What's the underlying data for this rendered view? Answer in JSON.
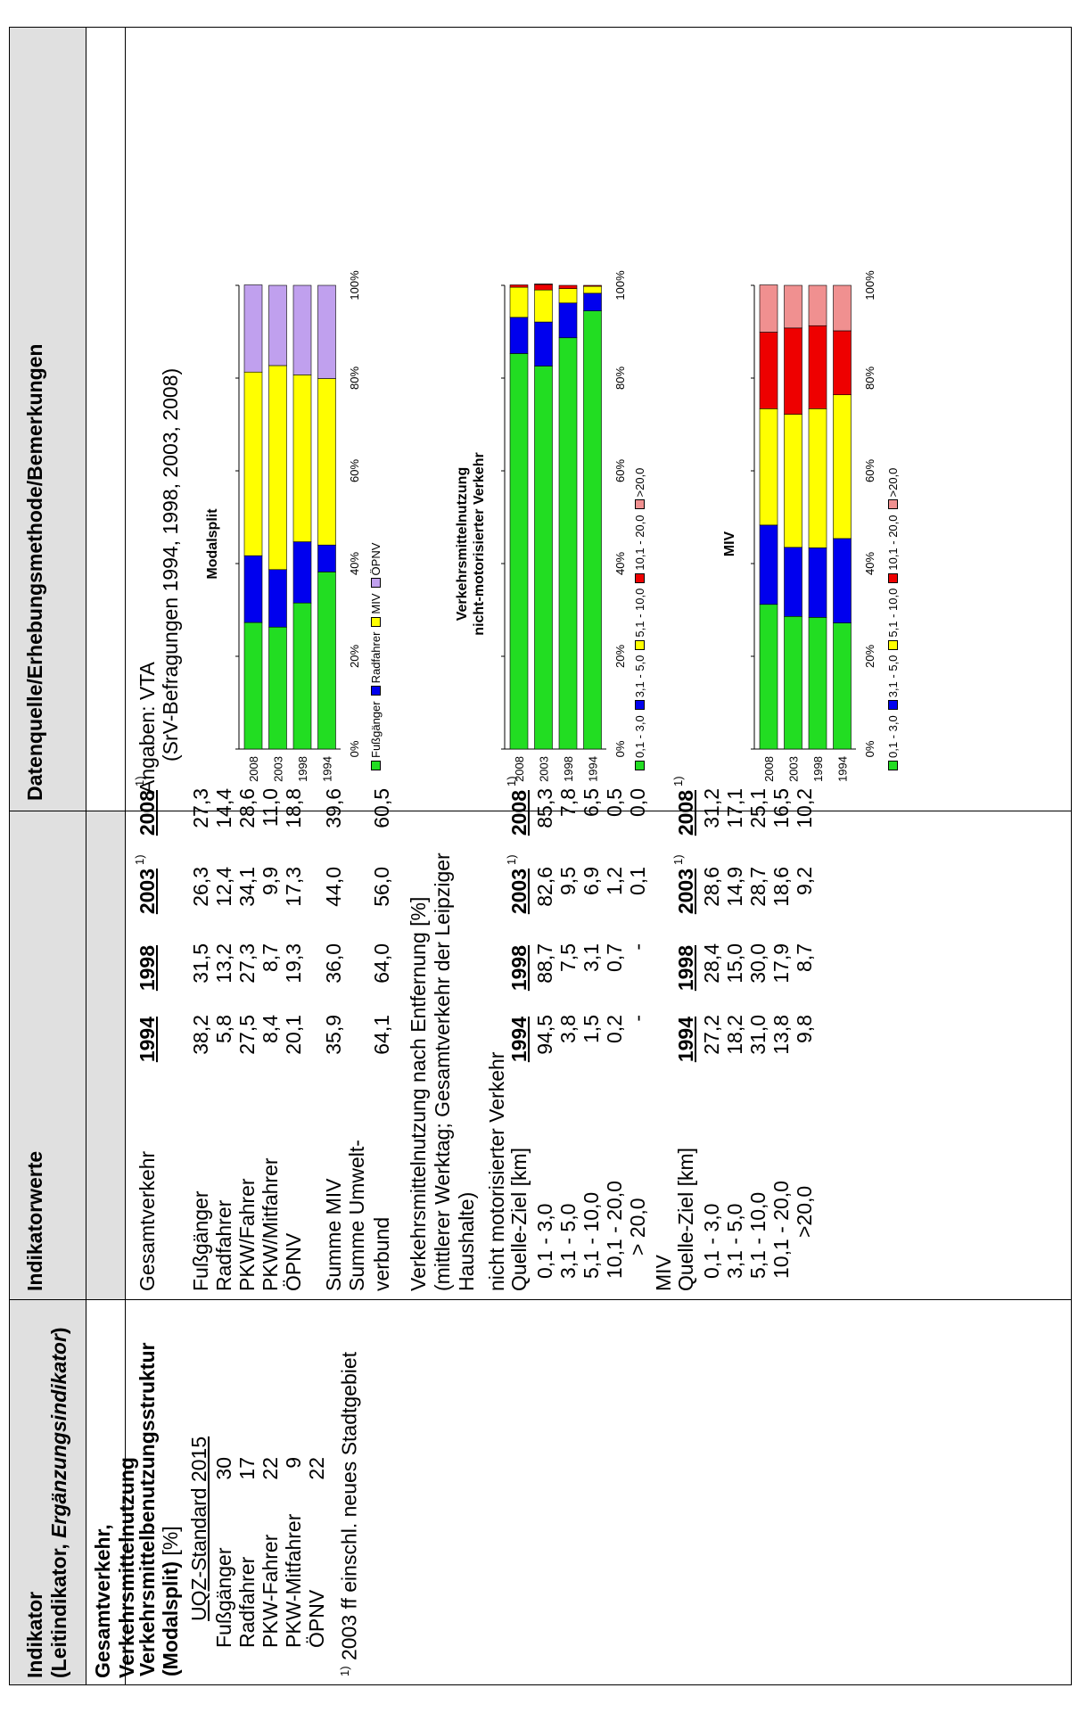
{
  "headers": {
    "col1_line1": "Indikator",
    "col1_line2_bold": "(Leitindikator, ",
    "col1_line2_italic": "Ergänzungsindikator",
    "col1_line2_end": ")",
    "col2": "Indikatorwerte",
    "col3": "Datenquelle/Erhebungsmethode/Bemerkungen"
  },
  "section": "Gesamtverkehr, Verkehrsmittelnutzung",
  "indicator": {
    "title_line1": "Verkehrsmittelbenutzungsstruktur",
    "title_line2_bold": "(Modalsplit)",
    "title_line2_rest": " [%]",
    "standard_title": "UQZ-Standard 2015",
    "standard_rows": [
      {
        "label": "Fußgänger",
        "value": "30"
      },
      {
        "label": "Radfahrer",
        "value": "17"
      },
      {
        "label": "PKW-Fahrer",
        "value": "22"
      },
      {
        "label": "PKW-Mitfahrer",
        "value": "9"
      },
      {
        "label": "ÖPNV",
        "value": "22"
      }
    ],
    "footnote_marker": "1)",
    "footnote_text": " 2003 ff einschl. neues Stadtgebiet"
  },
  "values": {
    "years": [
      "1994",
      "1998",
      "2003",
      "2008"
    ],
    "footnote_marker": "1)",
    "gesamt_label": "Gesamtverkehr",
    "gesamt_rows": [
      {
        "label": "Fußgänger",
        "v": [
          "38,2",
          "31,5",
          "26,3",
          "27,3"
        ]
      },
      {
        "label": "Radfahrer",
        "v": [
          "5,8",
          "13,2",
          "12,4",
          "14,4"
        ]
      },
      {
        "label": "PKW/Fahrer",
        "v": [
          "27,5",
          "27,3",
          "34,1",
          "28,6"
        ]
      },
      {
        "label": "PKW/Mitfahrer",
        "v": [
          "8,4",
          "8,7",
          "9,9",
          "11,0"
        ]
      },
      {
        "label": "ÖPNV",
        "v": [
          "20,1",
          "19,3",
          "17,3",
          "18,8"
        ]
      }
    ],
    "summe_miv": {
      "label": "Summe MIV",
      "v": [
        "35,9",
        "36,0",
        "44,0",
        "39,6"
      ]
    },
    "summe_umwelt_line1": "Summe Umwelt-",
    "summe_umwelt": {
      "label": "verbund",
      "v": [
        "64,1",
        "64,0",
        "56,0",
        "60,5"
      ]
    },
    "entfernung_lines": [
      "Verkehrsmittelnutzung nach Entfernung [%]",
      "(mittlerer Werktag; Gesamtverkehr der Leipziger",
      "Haushalte)"
    ],
    "nmv_label": "nicht motorisierter Verkehr",
    "qz_label": "Quelle-Ziel [km]",
    "nmv_rows": [
      {
        "label": "0,1 -  3,0",
        "v": [
          "94,5",
          "88,7",
          "82,6",
          "85,3"
        ]
      },
      {
        "label": "3,1 -  5,0",
        "v": [
          "3,8",
          "7,5",
          "9,5",
          "7,8"
        ]
      },
      {
        "label": "5,1 - 10,0",
        "v": [
          "1,5",
          "3,1",
          "6,9",
          "6,5"
        ]
      },
      {
        "label": "10,1 - 20,0",
        "v": [
          "0,2",
          "0,7",
          "1,2",
          "0,5"
        ]
      },
      {
        "label": "> 20,0",
        "v": [
          "-",
          "-",
          "0,1",
          "0,0"
        ]
      }
    ],
    "miv_label": "MIV",
    "miv_rows": [
      {
        "label": "0,1 -  3,0",
        "v": [
          "27,2",
          "28,4",
          "28,6",
          "31,2"
        ]
      },
      {
        "label": "3,1 -  5,0",
        "v": [
          "18,2",
          "15,0",
          "14,9",
          "17,1"
        ]
      },
      {
        "label": "5,1 - 10,0",
        "v": [
          "31,0",
          "30,0",
          "28,7",
          "25,1"
        ]
      },
      {
        "label": "10,1 - 20,0",
        "v": [
          "13,8",
          "17,9",
          "18,6",
          "16,5"
        ]
      },
      {
        "label": ">20,0",
        "v": [
          "9,8",
          "8,7",
          "9,2",
          "10,2"
        ]
      }
    ]
  },
  "source": {
    "line1": "Angaben: VTA",
    "line2": "(SrV-Befragungen 1994, 1998, 2003, 2008)"
  },
  "chart_data": [
    {
      "type": "bar",
      "stacked": true,
      "orientation": "horizontal",
      "title": "Modalsplit",
      "categories": [
        "2008",
        "2003",
        "1998",
        "1994"
      ],
      "xticks": [
        "0%",
        "20%",
        "40%",
        "60%",
        "80%",
        "100%"
      ],
      "series": [
        {
          "name": "Fußgänger",
          "color": "#22dd22",
          "values": [
            27.3,
            26.3,
            31.5,
            38.2
          ]
        },
        {
          "name": "Radfahrer",
          "color": "#0000ee",
          "values": [
            14.4,
            12.4,
            13.2,
            5.8
          ]
        },
        {
          "name": "MIV",
          "color": "#ffff00",
          "values": [
            39.6,
            44.0,
            36.0,
            35.9
          ]
        },
        {
          "name": "ÖPNV",
          "color": "#c0a0ee",
          "values": [
            18.8,
            17.3,
            19.3,
            20.1
          ]
        }
      ]
    },
    {
      "type": "bar",
      "stacked": true,
      "orientation": "horizontal",
      "title_lines": [
        "Verkehrsmittelnutzung",
        "nicht-motorisierter Verkehr"
      ],
      "categories": [
        "2008",
        "2003",
        "1998",
        "1994"
      ],
      "xticks": [
        "0%",
        "20%",
        "40%",
        "60%",
        "80%",
        "100%"
      ],
      "series": [
        {
          "name": "0,1 - 3,0",
          "color": "#22dd22",
          "values": [
            85.3,
            82.6,
            88.7,
            94.5
          ]
        },
        {
          "name": "3,1 - 5,0",
          "color": "#0000ee",
          "values": [
            7.8,
            9.5,
            7.5,
            3.8
          ]
        },
        {
          "name": "5,1 - 10,0",
          "color": "#ffff00",
          "values": [
            6.5,
            6.9,
            3.1,
            1.5
          ]
        },
        {
          "name": "10,1 - 20,0",
          "color": "#ee0000",
          "values": [
            0.5,
            1.2,
            0.7,
            0.2
          ]
        },
        {
          "name": ">20,0",
          "color": "#f09090",
          "values": [
            0.0,
            0.1,
            0,
            0
          ]
        }
      ]
    },
    {
      "type": "bar",
      "stacked": true,
      "orientation": "horizontal",
      "title": "MIV",
      "categories": [
        "2008",
        "2003",
        "1998",
        "1994"
      ],
      "xticks": [
        "0%",
        "20%",
        "40%",
        "60%",
        "80%",
        "100%"
      ],
      "series": [
        {
          "name": "0,1 - 3,0",
          "color": "#22dd22",
          "values": [
            31.2,
            28.6,
            28.4,
            27.2
          ]
        },
        {
          "name": "3,1 - 5,0",
          "color": "#0000ee",
          "values": [
            17.1,
            14.9,
            15.0,
            18.2
          ]
        },
        {
          "name": "5,1 - 10,0",
          "color": "#ffff00",
          "values": [
            25.1,
            28.7,
            30.0,
            31.0
          ]
        },
        {
          "name": "10,1 - 20,0",
          "color": "#ee0000",
          "values": [
            16.5,
            18.6,
            17.9,
            13.8
          ]
        },
        {
          "name": ">20,0",
          "color": "#f09090",
          "values": [
            10.2,
            9.2,
            8.7,
            9.8
          ]
        }
      ]
    }
  ]
}
